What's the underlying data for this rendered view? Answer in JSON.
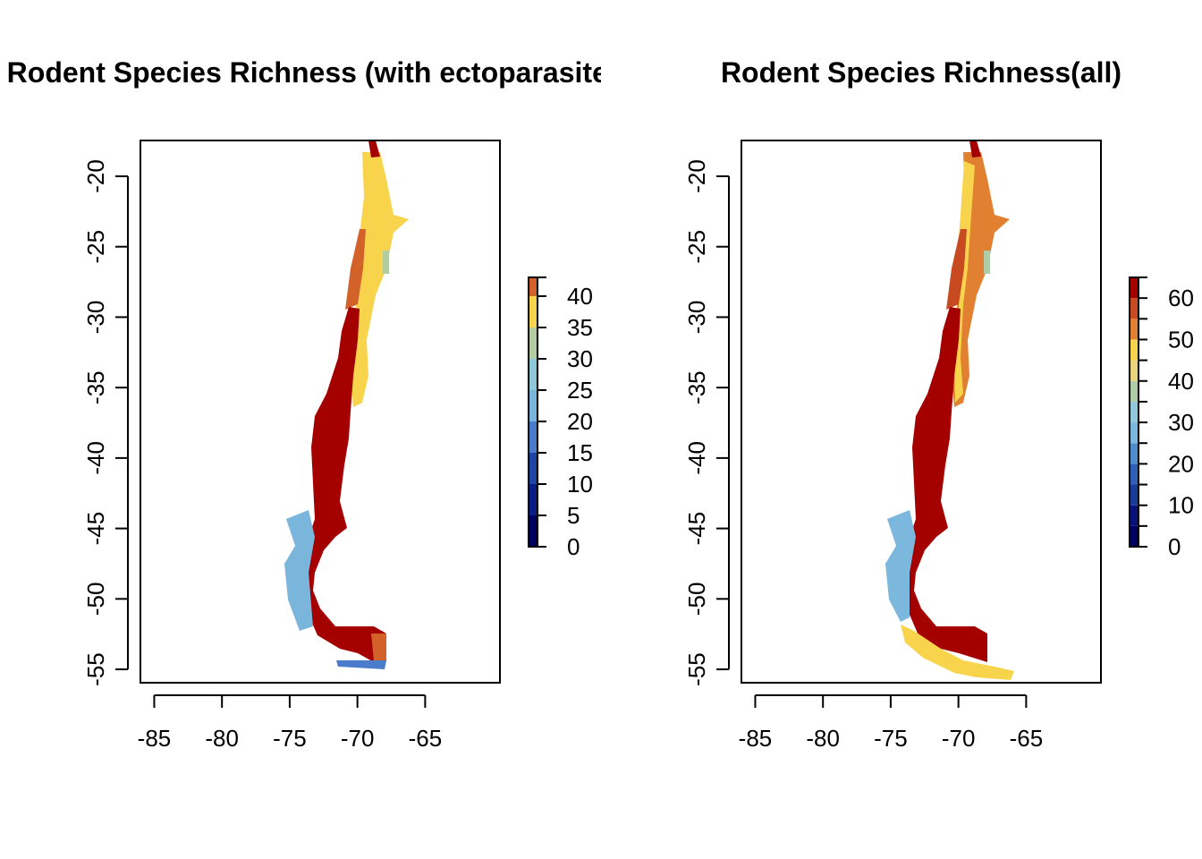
{
  "chart_data": [
    {
      "type": "map",
      "title": "Rodent Species Richness (with ectoparasites)",
      "xlim": [
        -86.02,
        -59.48
      ],
      "ylim": [
        -55.95,
        -17.46
      ],
      "xticks": [
        -85,
        -80,
        -75,
        -70,
        -65
      ],
      "yticks": [
        -20,
        -25,
        -30,
        -35,
        -40,
        -45,
        -50,
        -55
      ],
      "legend": {
        "breaks": [
          0,
          5,
          10,
          15,
          20,
          25,
          30,
          35,
          40,
          43
        ],
        "colors": [
          "#00005e",
          "#0a1c86",
          "#1f44a6",
          "#4a7ccb",
          "#7ab6dc",
          "#8ec6da",
          "#b3cca0",
          "#f8d44c",
          "#d2622a",
          "#a50000"
        ],
        "ticks": [
          0,
          5,
          10,
          15,
          20,
          25,
          30,
          35,
          40
        ]
      }
    },
    {
      "type": "map",
      "title": "Rodent Species Richness(all)",
      "xlim": [
        -86.02,
        -59.48
      ],
      "ylim": [
        -55.95,
        -17.46
      ],
      "xticks": [
        -85,
        -80,
        -75,
        -70,
        -65
      ],
      "yticks": [
        -20,
        -25,
        -30,
        -35,
        -40,
        -45,
        -50,
        -55
      ],
      "legend": {
        "breaks": [
          0,
          5,
          10,
          15,
          20,
          25,
          30,
          35,
          40,
          45,
          50,
          55,
          60,
          65
        ],
        "colors": [
          "#00005e",
          "#08127a",
          "#1a3a9a",
          "#2f5fb8",
          "#4f8ccc",
          "#7cb8dd",
          "#92c8dc",
          "#b0cca8",
          "#e8d47a",
          "#f8d44c",
          "#e08030",
          "#c84a20",
          "#a50000"
        ],
        "ticks": [
          0,
          10,
          20,
          30,
          40,
          50,
          60
        ]
      }
    }
  ]
}
